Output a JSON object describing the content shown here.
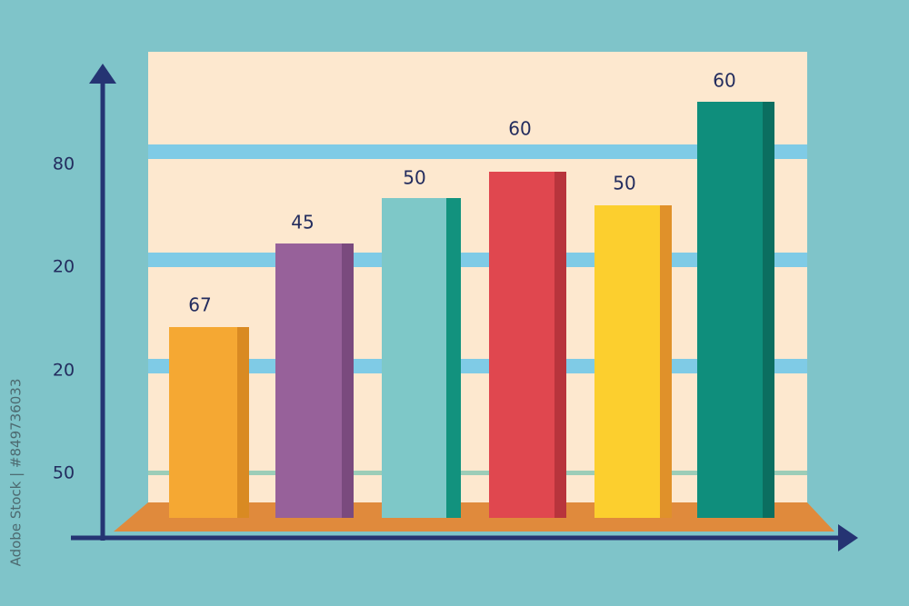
{
  "axis_labels": [
    "80",
    "20",
    "20",
    "50"
  ],
  "bar_labels": [
    "67",
    "45",
    "50",
    "60",
    "50",
    "60"
  ],
  "watermark": "Adobe Stock | #849736033"
}
